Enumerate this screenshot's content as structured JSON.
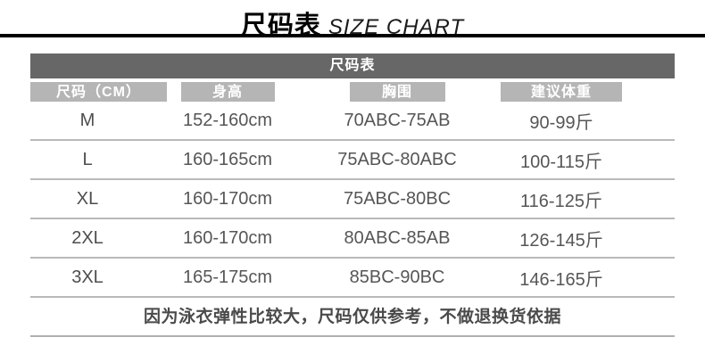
{
  "page_title": {
    "zh": "尺码表",
    "en": "SIZE CHART"
  },
  "table": {
    "title": "尺码表",
    "columns": {
      "size": "尺码（CM）",
      "height": "身高",
      "bust": "胸围",
      "weight": "建议体重"
    },
    "rows": [
      {
        "size": "M",
        "height": "152-160cm",
        "bust": "70ABC-75AB",
        "weight": "90-99斤"
      },
      {
        "size": "L",
        "height": "160-165cm",
        "bust": "75ABC-80ABC",
        "weight": "100-115斤"
      },
      {
        "size": "XL",
        "height": "160-170cm",
        "bust": "75ABC-80BC",
        "weight": "116-125斤"
      },
      {
        "size": "2XL",
        "height": "160-170cm",
        "bust": "80ABC-85AB",
        "weight": "126-145斤"
      },
      {
        "size": "3XL",
        "height": "165-175cm",
        "bust": "85BC-90BC",
        "weight": "146-165斤"
      }
    ],
    "note": "因为泳衣弹性比较大，尺码仅供参考，不做退换货依据"
  },
  "colors": {
    "title_text": "#000000",
    "title_divider": "#000000",
    "table_title_bar_bg": "#676767",
    "table_title_bar_text": "#ffffff",
    "column_header_bg": "#b5b5b5",
    "column_header_text": "#ffffff",
    "row_text": "#565656",
    "row_divider": "#b9b9b9",
    "note_text": "#4a4a4a"
  }
}
